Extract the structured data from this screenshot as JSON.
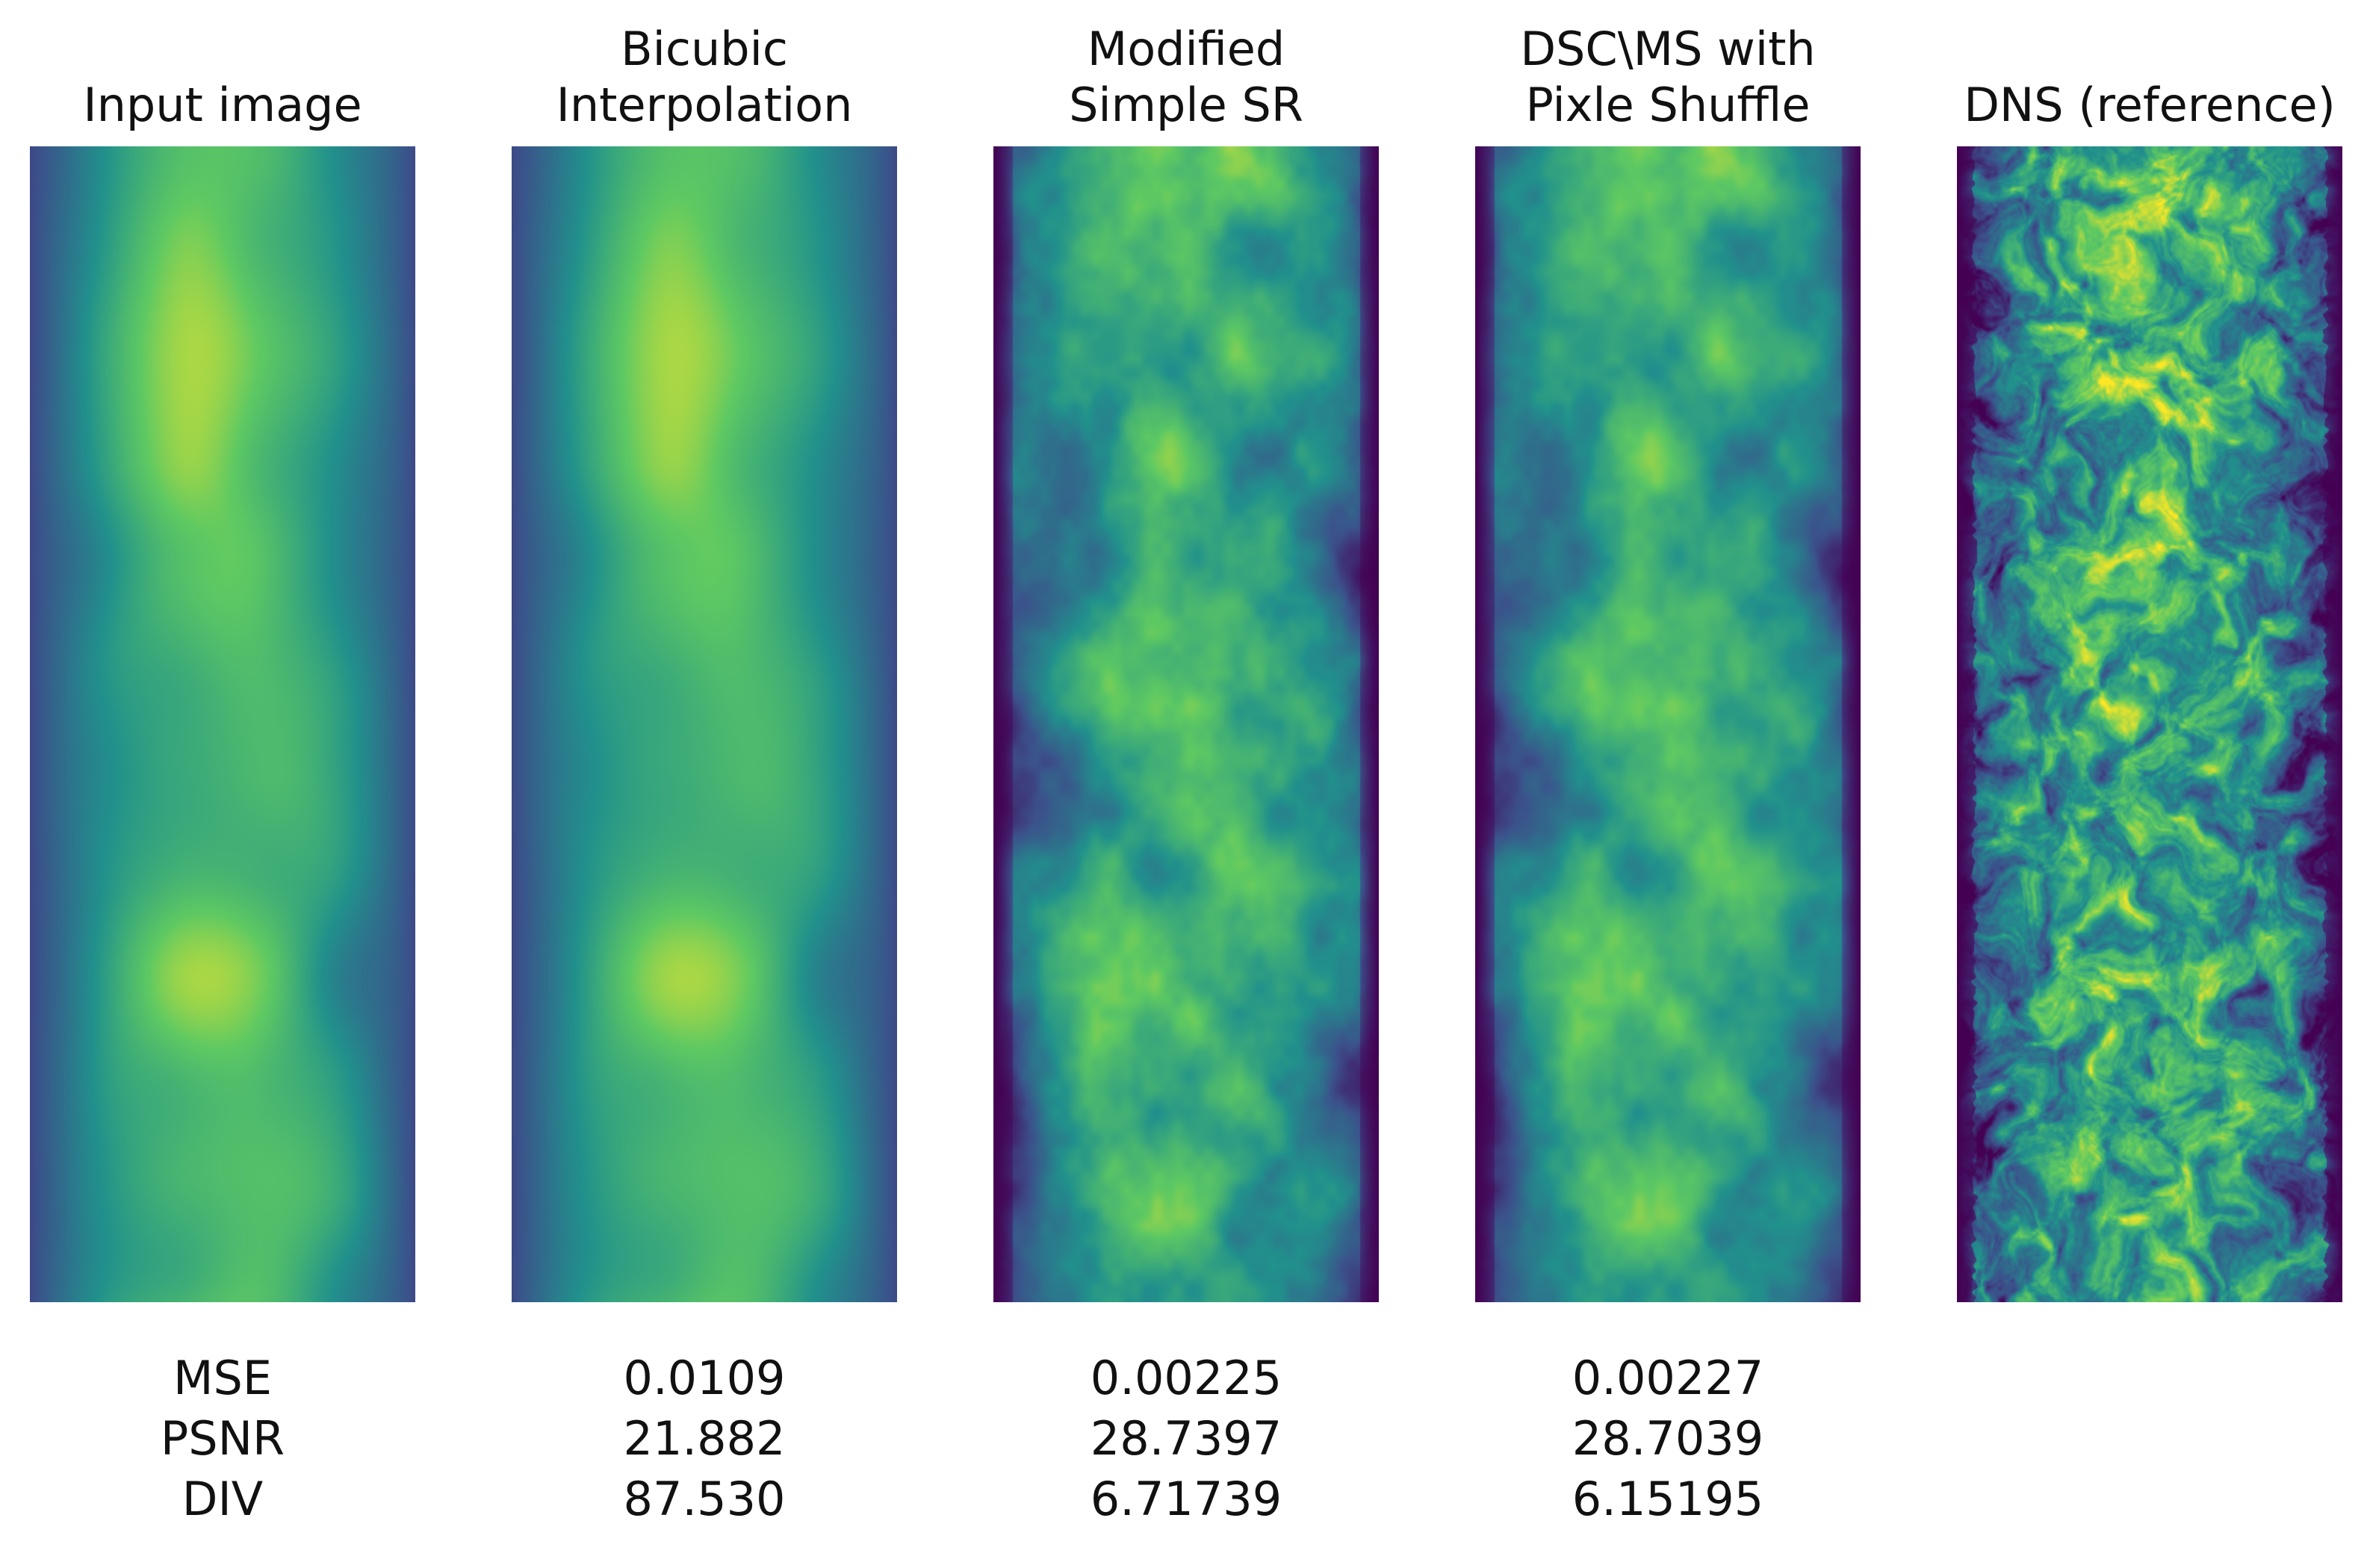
{
  "colormap": [
    "#440154",
    "#3b528b",
    "#21918c",
    "#5ec962",
    "#fde725"
  ],
  "metric_labels": [
    "MSE",
    "PSNR",
    "DIV"
  ],
  "panels": [
    {
      "title_lines": [
        "Input image"
      ],
      "style": "very-blurry",
      "metrics": []
    },
    {
      "title_lines": [
        "Bicubic",
        "Interpolation"
      ],
      "style": "very-blurry",
      "metrics": [
        "0.0109",
        "21.882",
        "87.530"
      ]
    },
    {
      "title_lines": [
        "Modified",
        "Simple SR"
      ],
      "style": "smooth-detail",
      "metrics": [
        "0.00225",
        "28.7397",
        "6.71739"
      ]
    },
    {
      "title_lines": [
        "DSC\\MS with",
        "Pixle Shuffle"
      ],
      "style": "smooth-detail",
      "metrics": [
        "0.00227",
        "28.7039",
        "6.15195"
      ]
    },
    {
      "title_lines": [
        "DNS (reference)"
      ],
      "style": "turbulent",
      "metrics": []
    }
  ]
}
